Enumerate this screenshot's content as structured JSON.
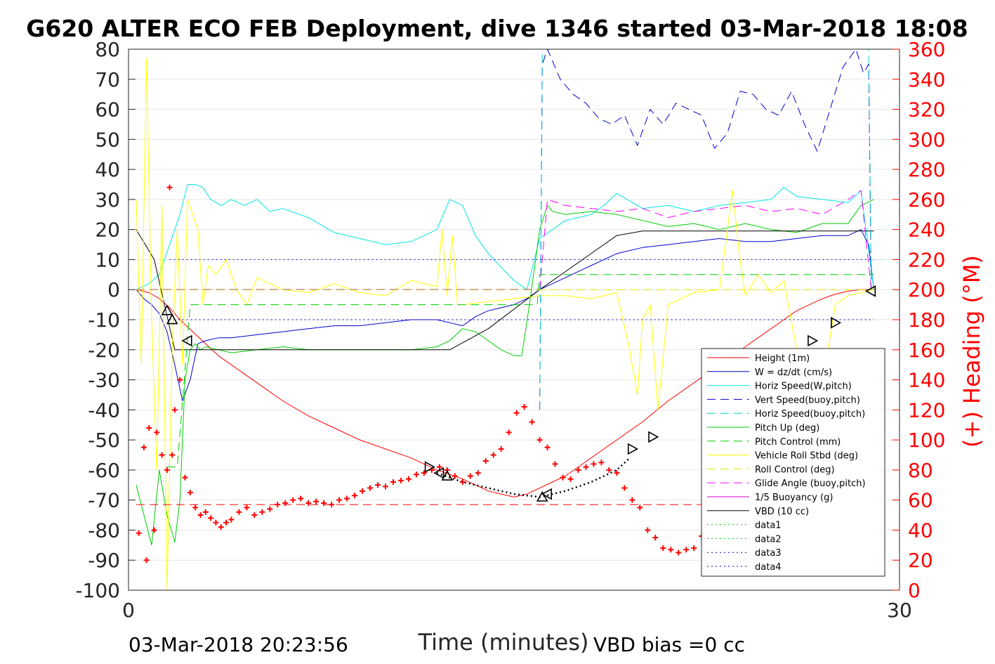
{
  "chart_data": {
    "type": "line",
    "title": "G620 ALTER ECO FEB Deployment, dive 1346 started 03-Mar-2018 18:08",
    "xlabel": "Time (minutes)",
    "ylabel": "",
    "ylabel_right": "(+) Heading (°M)",
    "xlim": [
      0,
      30
    ],
    "ylim": [
      -100,
      80
    ],
    "ylim_right": [
      0,
      360
    ],
    "xticks": [
      "0",
      "30"
    ],
    "yticks": [
      "80",
      "70",
      "60",
      "50",
      "40",
      "30",
      "20",
      "10",
      "0",
      "-10",
      "-20",
      "-30",
      "-40",
      "-50",
      "-60",
      "-70",
      "-80",
      "-90",
      "-100"
    ],
    "yticks_right": [
      "360",
      "340",
      "320",
      "300",
      "280",
      "260",
      "240",
      "220",
      "200",
      "180",
      "160",
      "140",
      "120",
      "100",
      "80",
      "60",
      "40",
      "20",
      "0"
    ],
    "grid": true,
    "legend_position": "lower-right",
    "footer_left": "03-Mar-2018 20:23:56",
    "footer_right": "VBD bias =0 cc",
    "legend": [
      {
        "label": "Height (1m)",
        "color": "#ff0000",
        "dash": "solid"
      },
      {
        "label": "W = dz/dt (cm/s)",
        "color": "#0000cc",
        "dash": "solid"
      },
      {
        "label": "Horiz Speed(W,pitch)",
        "color": "#00e5e5",
        "dash": "solid"
      },
      {
        "label": "Vert Speed(buoy,pitch)",
        "color": "#0000cc",
        "dash": "dashed"
      },
      {
        "label": "Horiz Speed(buoy,pitch)",
        "color": "#00cccc",
        "dash": "dashed"
      },
      {
        "label": "Pitch Up (deg)",
        "color": "#00cc00",
        "dash": "solid"
      },
      {
        "label": "Pitch Control (mm)",
        "color": "#00cc00",
        "dash": "dashed"
      },
      {
        "label": "Vehicle Roll Stbd (deg)",
        "color": "#ffff00",
        "dash": "solid"
      },
      {
        "label": "Roll Control (deg)",
        "color": "#e5e500",
        "dash": "dashed"
      },
      {
        "label": "Glide Angle (buoy,pitch)",
        "color": "#ff00ff",
        "dash": "dashed"
      },
      {
        "label": "1/5 Buoyancy (g)",
        "color": "#cc00cc",
        "dash": "solid"
      },
      {
        "label": "VBD (10 cc)",
        "color": "#000000",
        "dash": "solid"
      },
      {
        "label": "data1",
        "color": "#00cc00",
        "dash": "dotted"
      },
      {
        "label": "data2",
        "color": "#00cc00",
        "dash": "dotted"
      },
      {
        "label": "data3",
        "color": "#0000cc",
        "dash": "dotted"
      },
      {
        "label": "data4",
        "color": "#0000cc",
        "dash": "dotted"
      }
    ],
    "series": [
      {
        "key": "height",
        "color": "#ff0000",
        "dash": "solid",
        "width": 1,
        "x": [
          0.3,
          0.8,
          1.2,
          1.6,
          2.0,
          2.5,
          3.0,
          3.5,
          4.0,
          5.0,
          6.0,
          7.0,
          8.0,
          9.0,
          10.0,
          11.0,
          12.0,
          13.0,
          14.0,
          14.5,
          15.0,
          15.5,
          16.0,
          16.5,
          17.0,
          17.5,
          18.0,
          18.5,
          19.0,
          20.0,
          21.0,
          22.0,
          23.0,
          24.0,
          25.0,
          25.5,
          26.0,
          26.5,
          27.0,
          27.5,
          28.0,
          28.5,
          28.9
        ],
        "y": [
          0,
          -1,
          -3,
          -6,
          -10,
          -14,
          -18,
          -22,
          -25,
          -31,
          -37,
          -42,
          -46,
          -50,
          -53,
          -56,
          -60,
          -63,
          -67,
          -68,
          -69,
          -68,
          -66,
          -64,
          -62,
          -59,
          -56,
          -53,
          -50,
          -44,
          -37,
          -31,
          -25,
          -19,
          -13,
          -10,
          -7,
          -5,
          -3,
          -1.5,
          -0.5,
          0,
          0
        ]
      },
      {
        "key": "w",
        "color": "#0000cc",
        "dash": "solid",
        "width": 1,
        "x": [
          0.3,
          0.6,
          0.9,
          1.2,
          1.5,
          1.8,
          2.1,
          2.4,
          2.7,
          3.0,
          3.5,
          4.0,
          5.0,
          6.0,
          7.0,
          8.0,
          9.0,
          10.0,
          11.0,
          12.0,
          12.5,
          13.0,
          13.5,
          14.0,
          14.5,
          15.0,
          15.5,
          16.0,
          17.0,
          18.0,
          19.0,
          20.0,
          21.0,
          22.0,
          23.0,
          24.0,
          25.0,
          26.0,
          27.0,
          28.0,
          28.5,
          28.8,
          29.0
        ],
        "y": [
          0,
          -3,
          -5,
          -8,
          -14,
          -25,
          -37,
          -30,
          -18,
          -17,
          -16,
          -16,
          -15,
          -14,
          -13,
          -12,
          -12,
          -11,
          -10,
          -10,
          -11,
          -12,
          -9,
          -7,
          -6,
          -5,
          -3,
          0,
          4,
          8,
          12,
          14,
          15,
          16,
          17,
          16,
          16,
          17,
          18,
          18,
          20,
          15,
          0
        ]
      },
      {
        "key": "horiz_w",
        "color": "#00e5e5",
        "dash": "solid",
        "width": 1,
        "x": [
          0.3,
          0.8,
          1.2,
          1.6,
          2.0,
          2.3,
          2.6,
          2.9,
          3.2,
          3.6,
          4.0,
          4.5,
          5.0,
          5.5,
          6.0,
          7.0,
          8.0,
          9.0,
          10.0,
          11.0,
          12.0,
          12.5,
          13.0,
          13.5,
          14.0,
          15.0,
          15.5,
          16.0,
          16.5,
          17.0,
          17.5,
          18.0,
          18.5,
          19.0,
          20.0,
          21.0,
          22.0,
          23.0,
          24.0,
          25.0,
          25.5,
          26.0,
          27.0,
          28.0,
          28.5,
          29.0
        ],
        "y": [
          0,
          2,
          5,
          15,
          25,
          35,
          35,
          34,
          30,
          28,
          30,
          28,
          30,
          26,
          27,
          24,
          19,
          17,
          15,
          16,
          20,
          30,
          28,
          18,
          12,
          3,
          0,
          17,
          20,
          23,
          24,
          25,
          28,
          32,
          27,
          28,
          26,
          28,
          29,
          30,
          34,
          31,
          30,
          29,
          33,
          0
        ]
      },
      {
        "key": "pitch",
        "color": "#00cc00",
        "dash": "solid",
        "width": 1,
        "x": [
          0.3,
          0.6,
          0.9,
          1.2,
          1.5,
          1.8,
          2.0,
          2.2,
          2.4,
          2.6,
          2.8,
          3.0,
          3.5,
          4.0,
          5.0,
          6.0,
          7.0,
          8.0,
          9.0,
          10.0,
          11.0,
          12.0,
          12.5,
          13.0,
          13.5,
          14.0,
          14.5,
          15.0,
          15.3,
          15.6,
          16.0,
          16.3,
          16.5,
          17.0,
          18.0,
          19.0,
          20.0,
          21.0,
          22.0,
          23.0,
          24.0,
          25.0,
          26.0,
          27.0,
          28.0,
          28.5,
          29.0
        ],
        "y": [
          -65,
          -75,
          -85,
          -60,
          -75,
          -84,
          -70,
          -30,
          -20,
          -18,
          -20,
          -19,
          -20,
          -21,
          -20,
          -19,
          -20,
          -20,
          -20,
          -20,
          -20,
          -19,
          -17,
          -13,
          -14,
          -17,
          -20,
          -22,
          -22,
          -5,
          20,
          28,
          26,
          25,
          26,
          25,
          23,
          21,
          22,
          20,
          22,
          20,
          19,
          22,
          22,
          28,
          30
        ]
      },
      {
        "key": "vbd",
        "color": "#000000",
        "dash": "solid",
        "width": 1,
        "x": [
          0.3,
          1.0,
          1.8,
          2.2,
          4.0,
          8.0,
          12.0,
          12.5,
          14.0,
          16.0,
          17.0,
          18.0,
          19.0,
          20.0,
          21.0,
          25.0,
          28.0,
          29.0
        ],
        "y": [
          20,
          10,
          -20,
          -20,
          -20,
          -20,
          -20,
          -20,
          -13,
          0,
          6,
          12,
          18,
          19.5,
          19.5,
          19.5,
          19.5,
          19.5
        ]
      },
      {
        "key": "roll",
        "color": "#ffff00",
        "dash": "solid",
        "width": 1,
        "x": [
          0.3,
          0.5,
          0.7,
          0.9,
          1.1,
          1.3,
          1.5,
          1.7,
          1.9,
          2.1,
          2.3,
          2.5,
          2.7,
          2.9,
          3.1,
          3.4,
          3.8,
          4.2,
          4.6,
          5.0,
          5.5,
          6.0,
          7.0,
          8.0,
          9.0,
          10.0,
          11.0,
          12.0,
          12.2,
          12.4,
          12.6,
          12.8,
          13.0,
          14.0,
          15.0,
          16.0,
          17.0,
          18.0,
          19.0,
          19.5,
          19.8,
          20.0,
          20.3,
          20.6,
          21.0,
          22.0,
          23.0,
          23.5,
          23.8,
          24.0,
          24.5,
          25.0,
          25.5,
          26.0,
          26.5,
          27.0,
          27.5,
          28.0,
          28.5,
          29.0
        ],
        "y": [
          30,
          -25,
          77,
          -10,
          -60,
          28,
          -100,
          -20,
          20,
          -25,
          30,
          25,
          20,
          -5,
          8,
          5,
          10,
          0,
          -5,
          4,
          2,
          0,
          -1,
          2,
          -1,
          -2,
          3,
          1,
          20,
          -2,
          18,
          -5,
          -5,
          -4,
          -3,
          -2,
          -2,
          -3,
          -1,
          -20,
          -35,
          -10,
          -5,
          -40,
          -5,
          -1,
          0,
          33,
          10,
          -2,
          5,
          -1,
          3,
          -20,
          -40,
          -32,
          -5,
          -2,
          -1,
          0
        ]
      },
      {
        "key": "vert_buoy",
        "color": "#0000cc",
        "dash": "dashed",
        "width": 1,
        "x": [
          16.0,
          16.1,
          16.3,
          16.8,
          17.3,
          17.8,
          18.3,
          18.8,
          19.3,
          19.8,
          20.3,
          20.8,
          21.3,
          21.8,
          22.3,
          22.8,
          23.3,
          23.8,
          24.3,
          24.8,
          25.3,
          25.8,
          26.3,
          26.8,
          27.3,
          27.8,
          28.3,
          28.6,
          28.8,
          28.9
        ],
        "y": [
          -40,
          75,
          80,
          70,
          65,
          62,
          57,
          55,
          58,
          48,
          60,
          55,
          62,
          60,
          58,
          47,
          52,
          66,
          65,
          60,
          58,
          66,
          55,
          46,
          60,
          74,
          80,
          72,
          75,
          0
        ]
      },
      {
        "key": "horiz_buoy",
        "color": "#00cccc",
        "dash": "dashed",
        "width": 1,
        "x": [
          16.0,
          16.1,
          16.2,
          16.4,
          28.8,
          28.9
        ],
        "y": [
          -40,
          80,
          80,
          80,
          80,
          0
        ]
      },
      {
        "key": "glide",
        "color": "#ff00ff",
        "dash": "dashed",
        "width": 1,
        "x": [
          16.0,
          16.3,
          17.0,
          18.0,
          19.0,
          20.0,
          21.0,
          22.0,
          23.0,
          24.0,
          25.0,
          26.0,
          27.0,
          28.0,
          28.5,
          28.9
        ],
        "y": [
          0,
          30,
          28,
          27,
          26,
          27,
          24,
          26,
          27,
          28,
          26,
          27,
          25,
          30,
          33,
          0
        ]
      },
      {
        "key": "buoyancy",
        "color": "#9b30ff",
        "dash": "dashed",
        "width": 1.6,
        "x": [
          0.3,
          16.0
        ],
        "y": [
          0,
          0
        ]
      },
      {
        "key": "pitch_control",
        "color": "#00cc00",
        "dash": "dashed",
        "width": 1,
        "x": [
          1.5,
          1.9,
          2.4,
          4.0,
          8.0,
          12.0,
          15.9,
          16.0,
          29.0
        ],
        "y": [
          -59,
          -59,
          -5,
          -5,
          -5,
          -5,
          -5,
          5,
          5
        ]
      },
      {
        "key": "roll_control",
        "color": "#e5e500",
        "dash": "dashed",
        "width": 1,
        "x": [
          0.3,
          29.0
        ],
        "y": [
          0,
          0
        ]
      },
      {
        "key": "data3",
        "color": "#0000cc",
        "dash": "dotted",
        "width": 1,
        "x": [
          1.6,
          29.0
        ],
        "y": [
          10,
          10
        ]
      },
      {
        "key": "data4",
        "color": "#0000cc",
        "dash": "dotted",
        "width": 1,
        "x": [
          1.6,
          29.0
        ],
        "y": [
          -10,
          -10
        ]
      },
      {
        "key": "heading_target",
        "color": "#ff0000",
        "dash": "dashed",
        "width": 1,
        "axis": "right",
        "x": [
          0.3,
          29.0
        ],
        "y": [
          57,
          57
        ]
      },
      {
        "key": "dotted_profile",
        "color": "#000000",
        "dash": "dotted",
        "width": 2.5,
        "x": [
          12.0,
          13.0,
          14.0,
          15.0,
          16.0,
          17.0,
          18.0,
          19.0,
          19.5
        ],
        "y": [
          -61,
          -64,
          -66,
          -68,
          -69,
          -67,
          -64,
          -60,
          -56
        ]
      }
    ],
    "markers": [
      {
        "x": 1.5,
        "y": -7,
        "dir": "up"
      },
      {
        "x": 1.7,
        "y": -10,
        "dir": "up"
      },
      {
        "x": 2.3,
        "y": -17,
        "dir": "left"
      },
      {
        "x": 11.7,
        "y": -59,
        "dir": "right"
      },
      {
        "x": 12.1,
        "y": -61,
        "dir": "left"
      },
      {
        "x": 12.4,
        "y": -62,
        "dir": "up"
      },
      {
        "x": 16.1,
        "y": -69,
        "dir": "up"
      },
      {
        "x": 16.3,
        "y": -68,
        "dir": "left"
      },
      {
        "x": 19.6,
        "y": -53,
        "dir": "right"
      },
      {
        "x": 20.4,
        "y": -49,
        "dir": "right"
      },
      {
        "x": 22.6,
        "y": -37,
        "dir": "right"
      },
      {
        "x": 23.9,
        "y": -30,
        "dir": "right"
      },
      {
        "x": 26.6,
        "y": -17,
        "dir": "right"
      },
      {
        "x": 27.5,
        "y": -11,
        "dir": "right"
      },
      {
        "x": 28.9,
        "y": -0.5,
        "dir": "left"
      }
    ],
    "heading_points": {
      "axis": "right",
      "color": "#ff0000",
      "x": [
        0.4,
        0.6,
        0.7,
        0.8,
        1.0,
        1.1,
        1.3,
        1.5,
        1.6,
        1.7,
        1.8,
        2.0,
        2.2,
        2.4,
        2.6,
        2.8,
        3.0,
        3.2,
        3.4,
        3.6,
        3.8,
        4.0,
        4.3,
        4.6,
        4.9,
        5.2,
        5.5,
        5.8,
        6.1,
        6.4,
        6.7,
        7.0,
        7.3,
        7.6,
        7.9,
        8.2,
        8.5,
        8.8,
        9.1,
        9.4,
        9.7,
        10.0,
        10.3,
        10.6,
        10.9,
        11.2,
        11.5,
        11.8,
        12.1,
        12.4,
        12.7,
        13.0,
        13.3,
        13.6,
        13.9,
        14.2,
        14.5,
        14.8,
        15.1,
        15.4,
        15.7,
        16.0,
        16.3,
        16.6,
        16.9,
        17.2,
        17.5,
        17.8,
        18.1,
        18.4,
        18.7,
        19.0,
        19.3,
        19.6,
        19.9,
        20.2,
        20.5,
        20.8,
        21.1,
        21.4,
        21.7,
        22.0,
        22.3,
        22.6,
        22.9,
        23.2,
        23.5,
        23.8,
        24.1,
        24.4,
        24.7,
        25.0,
        25.3,
        25.6,
        25.9,
        26.2,
        26.5,
        26.8,
        27.1,
        27.4,
        27.7,
        28.0,
        28.3,
        28.6,
        28.9
      ],
      "y": [
        38,
        95,
        20,
        108,
        40,
        105,
        90,
        80,
        268,
        90,
        120,
        140,
        75,
        65,
        55,
        50,
        52,
        48,
        45,
        42,
        45,
        47,
        52,
        55,
        50,
        52,
        54,
        57,
        58,
        60,
        61,
        58,
        59,
        58,
        57,
        60,
        61,
        63,
        66,
        68,
        70,
        69,
        72,
        73,
        74,
        77,
        78,
        80,
        82,
        80,
        76,
        72,
        76,
        78,
        86,
        90,
        94,
        105,
        118,
        122,
        112,
        100,
        95,
        84,
        75,
        74,
        80,
        82,
        84,
        85,
        80,
        78,
        68,
        60,
        55,
        40,
        35,
        28,
        27,
        25,
        27,
        28,
        36,
        40,
        43,
        50,
        80,
        95,
        100,
        105,
        110,
        118,
        125,
        100,
        80,
        60,
        50,
        38,
        35,
        28,
        25,
        22,
        18,
        15,
        20
      ]
    }
  }
}
